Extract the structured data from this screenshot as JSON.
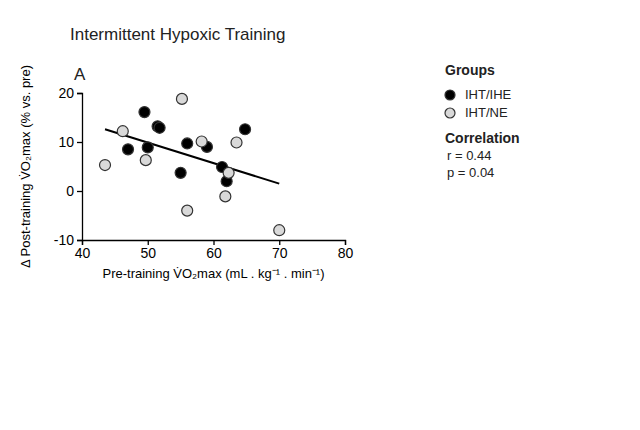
{
  "chart_data": {
    "type": "scatter",
    "title": "Intermittent Hypoxic Training",
    "panel_label": "A",
    "x_label": "Pre-training V̇O₂max (mL . kg⁻¹ . min⁻¹)",
    "y_label": "Δ Post-training V̇O₂max (% vs. pre)",
    "legend_title": "Groups",
    "annotations": [
      "Correlation",
      "r = 0.44",
      "p = 0.04"
    ],
    "legend": "right",
    "xlim": [
      40,
      80
    ],
    "xticks": [
      40,
      50,
      60,
      70,
      80
    ],
    "ylim": [
      -10,
      20
    ],
    "yticks": [
      -10,
      0,
      10,
      20
    ],
    "series": [
      {
        "name": "IHT/IHE",
        "type": "scatter",
        "marker": "circle",
        "color": "#000000",
        "x": [
          49.5,
          51.5,
          51.8,
          47.0,
          50.0,
          56.0,
          59.0,
          55.0,
          61.3,
          62.0,
          64.8
        ],
        "values": [
          16.1,
          13.2,
          12.9,
          8.5,
          8.9,
          9.7,
          9.0,
          3.7,
          4.9,
          2.0,
          12.6
        ]
      },
      {
        "name": "IHT/NE",
        "type": "scatter",
        "marker": "circle",
        "color": "#d9d9d9",
        "x": [
          43.5,
          46.2,
          49.7,
          55.2,
          58.2,
          56.0,
          61.8,
          62.3,
          63.5,
          70.0
        ],
        "values": [
          5.3,
          12.2,
          6.3,
          18.8,
          10.1,
          -4.0,
          -1.1,
          3.7,
          9.9,
          -8.0
        ]
      },
      {
        "type": "line",
        "line_style": "solid",
        "color": "#000000",
        "x": [
          43.5,
          70.0
        ],
        "values": [
          12.6,
          1.5
        ]
      }
    ]
  }
}
